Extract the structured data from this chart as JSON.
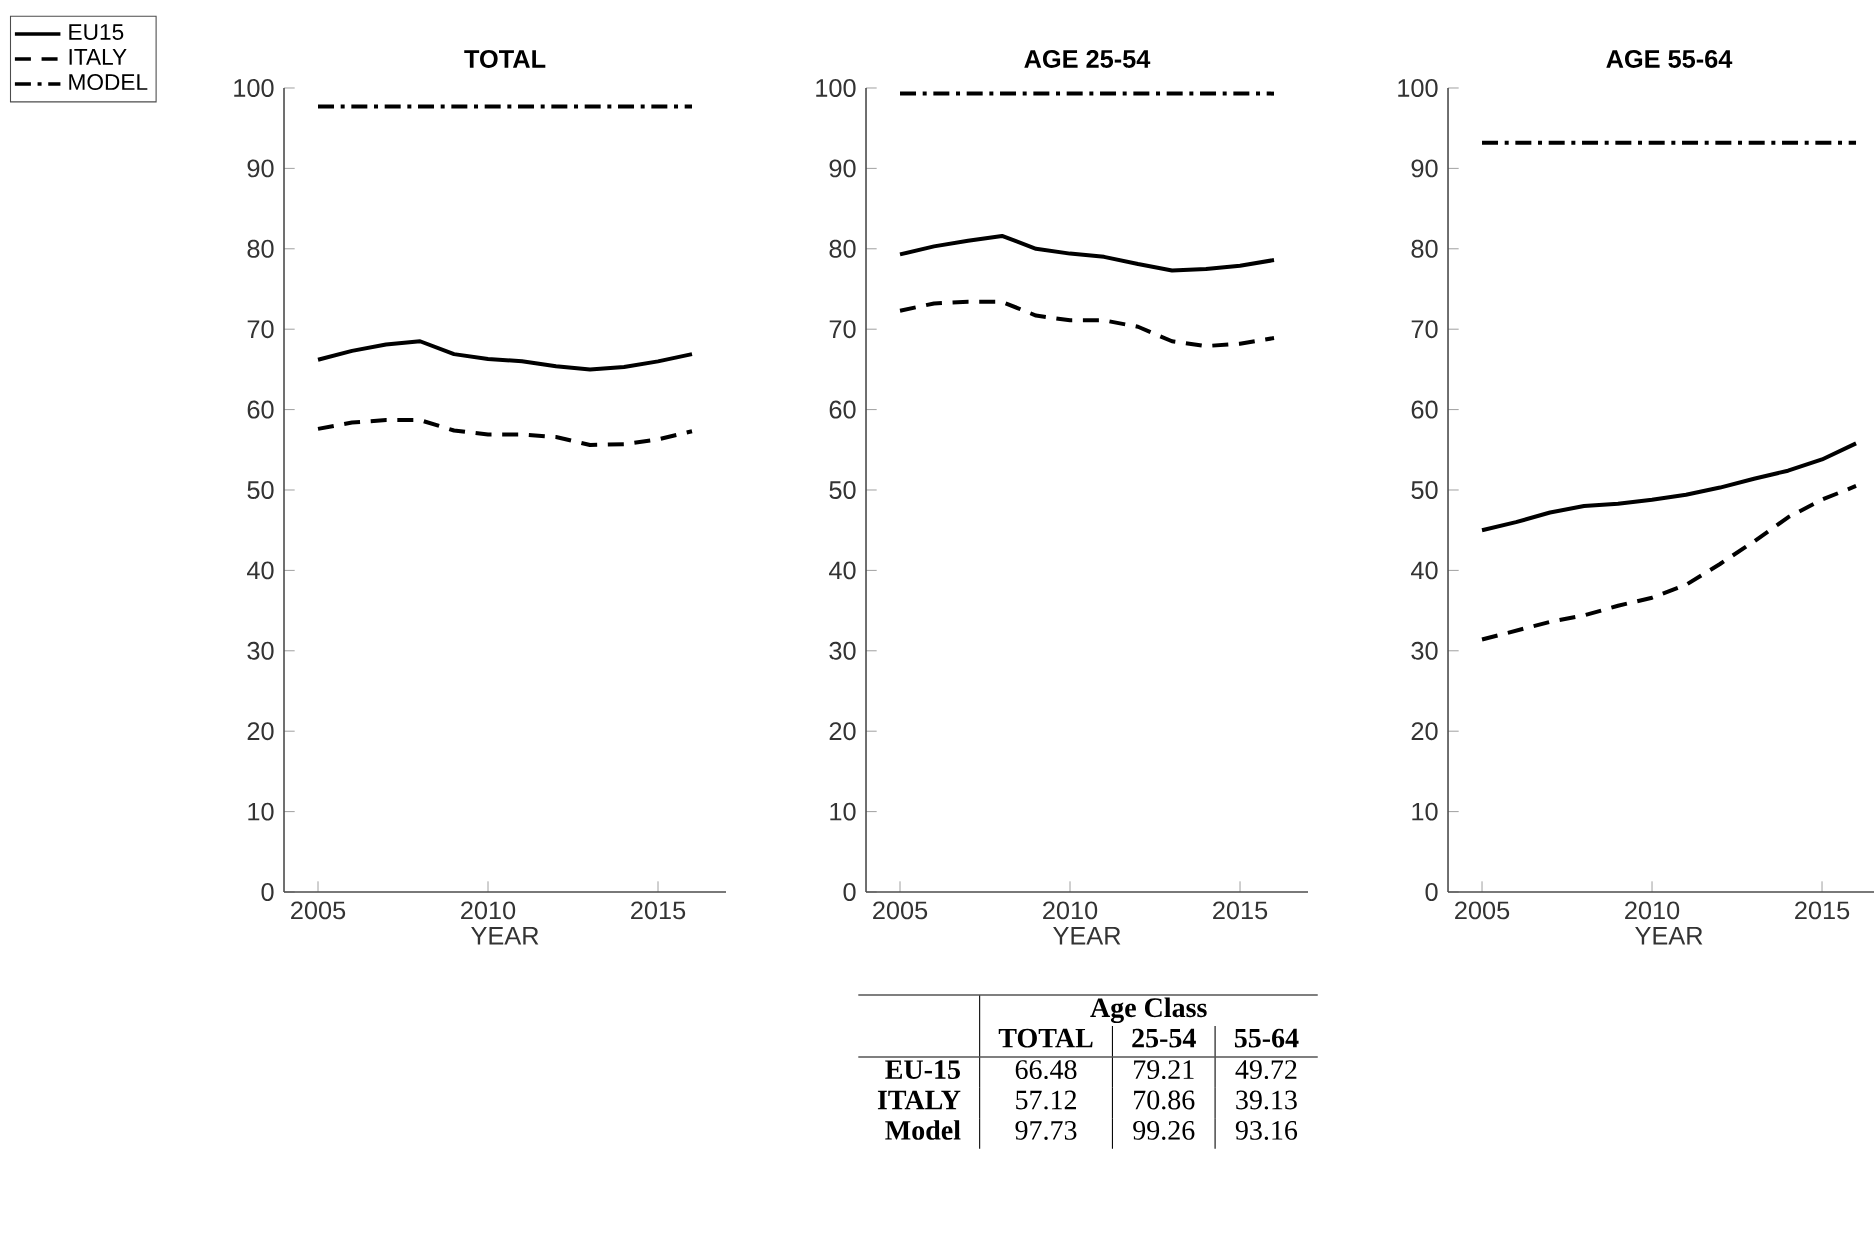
{
  "chart_data": [
    {
      "type": "line",
      "title": "TOTAL",
      "xlabel": "YEAR",
      "x": [
        2005,
        2006,
        2007,
        2008,
        2009,
        2010,
        2011,
        2012,
        2013,
        2014,
        2015,
        2016
      ],
      "xlim": [
        2004,
        2017
      ],
      "xticks": [
        2005,
        2010,
        2015
      ],
      "ylim": [
        0,
        100
      ],
      "yticks": [
        0,
        10,
        20,
        30,
        40,
        50,
        60,
        70,
        80,
        90,
        100
      ],
      "legend": "top left",
      "grid": false,
      "marker": "none",
      "series": [
        {
          "name": "EU15",
          "color": "#000000",
          "line_style": "solid",
          "values": [
            66.2,
            67.3,
            68.1,
            68.5,
            66.9,
            66.3,
            66.0,
            65.4,
            65.0,
            65.3,
            66.0,
            66.9
          ]
        },
        {
          "name": "ITALY",
          "color": "#000000",
          "line_style": "dashed",
          "values": [
            57.6,
            58.4,
            58.7,
            58.7,
            57.4,
            56.9,
            56.9,
            56.6,
            55.6,
            55.7,
            56.3,
            57.3
          ]
        },
        {
          "name": "MODEL",
          "color": "#000000",
          "line_style": "dashdot",
          "values": [
            97.7,
            97.7,
            97.7,
            97.7,
            97.7,
            97.7,
            97.7,
            97.7,
            97.7,
            97.7,
            97.7,
            97.7
          ]
        }
      ]
    },
    {
      "type": "line",
      "title": "AGE 25-54",
      "xlabel": "YEAR",
      "x": [
        2005,
        2006,
        2007,
        2008,
        2009,
        2010,
        2011,
        2012,
        2013,
        2014,
        2015,
        2016
      ],
      "xlim": [
        2004,
        2017
      ],
      "xticks": [
        2005,
        2010,
        2015
      ],
      "ylim": [
        0,
        100
      ],
      "yticks": [
        0,
        10,
        20,
        30,
        40,
        50,
        60,
        70,
        80,
        90,
        100
      ],
      "legend": false,
      "grid": false,
      "marker": "none",
      "series": [
        {
          "color": "#000000",
          "line_style": "solid",
          "values": [
            79.3,
            80.3,
            81.0,
            81.6,
            80.0,
            79.4,
            79.0,
            78.1,
            77.3,
            77.5,
            77.9,
            78.6
          ]
        },
        {
          "color": "#000000",
          "line_style": "dashed",
          "values": [
            72.3,
            73.2,
            73.4,
            73.4,
            71.7,
            71.1,
            71.1,
            70.3,
            68.5,
            67.9,
            68.2,
            68.9
          ]
        },
        {
          "color": "#000000",
          "line_style": "dashdot",
          "values": [
            99.3,
            99.3,
            99.3,
            99.3,
            99.3,
            99.3,
            99.3,
            99.3,
            99.3,
            99.3,
            99.3,
            99.3
          ]
        }
      ]
    },
    {
      "type": "line",
      "title": "AGE 55-64",
      "xlabel": "YEAR",
      "x": [
        2005,
        2006,
        2007,
        2008,
        2009,
        2010,
        2011,
        2012,
        2013,
        2014,
        2015,
        2016
      ],
      "xlim": [
        2004,
        2017
      ],
      "xticks": [
        2005,
        2010,
        2015
      ],
      "ylim": [
        0,
        100
      ],
      "yticks": [
        0,
        10,
        20,
        30,
        40,
        50,
        60,
        70,
        80,
        90,
        100
      ],
      "legend": false,
      "grid": false,
      "marker": "none",
      "series": [
        {
          "color": "#000000",
          "line_style": "solid",
          "values": [
            45.0,
            46.0,
            47.2,
            48.0,
            48.3,
            48.8,
            49.4,
            50.3,
            51.4,
            52.4,
            53.8,
            55.8
          ]
        },
        {
          "color": "#000000",
          "line_style": "dashed",
          "values": [
            31.4,
            32.5,
            33.6,
            34.4,
            35.6,
            36.6,
            38.2,
            40.8,
            43.6,
            46.6,
            48.8,
            50.5
          ]
        },
        {
          "color": "#000000",
          "line_style": "dashdot",
          "values": [
            93.2,
            93.2,
            93.2,
            93.2,
            93.2,
            93.2,
            93.2,
            93.2,
            93.2,
            93.2,
            93.2,
            93.2
          ]
        }
      ]
    },
    {
      "type": "other",
      "xlabel": "Age Class",
      "categories": [
        "TOTAL",
        "25-54",
        "55-64"
      ],
      "y_categories": [
        "EU-15",
        "ITALY",
        "Model"
      ],
      "data_labels": true,
      "cell_labels": [
        [
          "66.48",
          "79.21",
          "49.72"
        ],
        [
          "57.12",
          "70.86",
          "39.13"
        ],
        [
          "97.73",
          "99.26",
          "93.16"
        ]
      ]
    }
  ]
}
